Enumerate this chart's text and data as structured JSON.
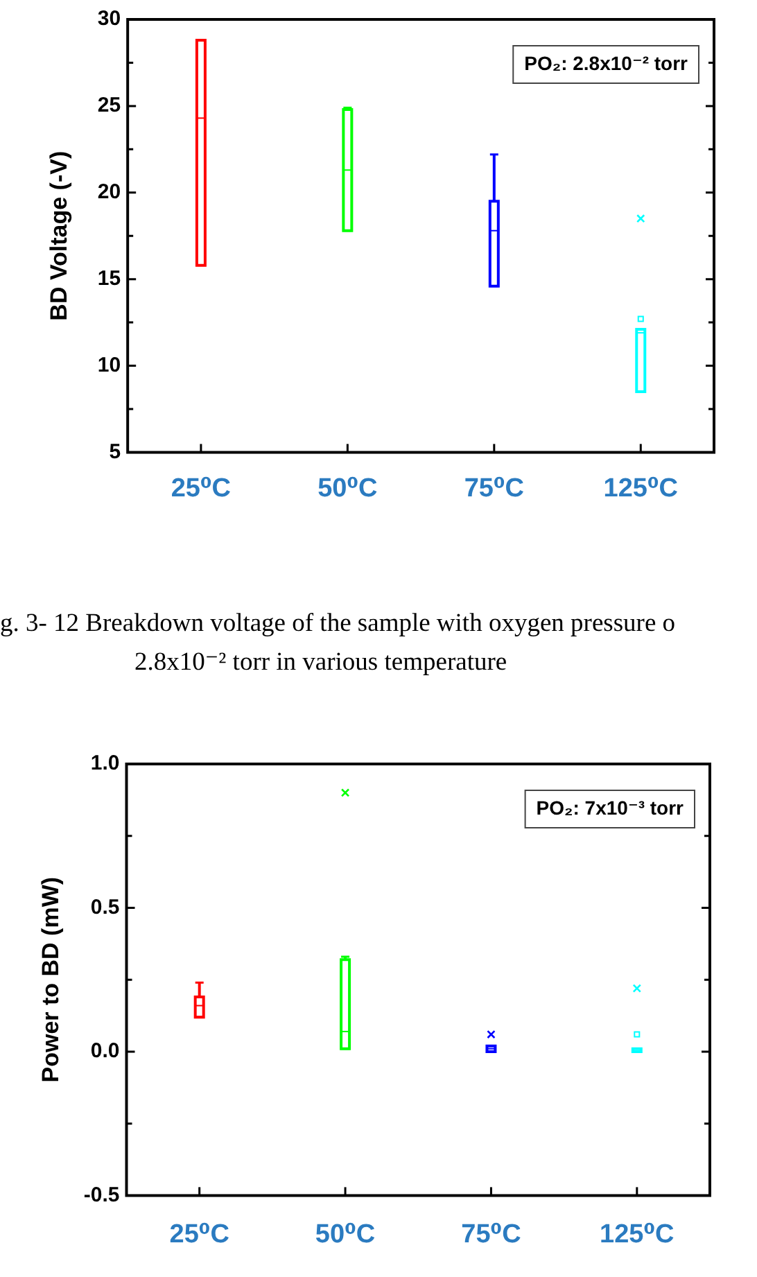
{
  "chart_data": [
    {
      "type": "box",
      "ylabel": "BD Voltage (-V)",
      "categories": [
        "25⁰C",
        "50⁰C",
        "75⁰C",
        "125⁰C"
      ],
      "colors": [
        "#ff0000",
        "#00ff00",
        "#0000ff",
        "#00ffff"
      ],
      "boxes": [
        {
          "low": 15.8,
          "q1": 15.8,
          "median": 24.3,
          "q3": 28.8,
          "high": 28.8
        },
        {
          "low": 17.8,
          "q1": 17.8,
          "median": 21.3,
          "q3": 24.8,
          "high": 24.9
        },
        {
          "low": 14.6,
          "q1": 14.6,
          "median": 17.8,
          "q3": 19.5,
          "high": 22.2
        },
        {
          "low": 8.5,
          "q1": 8.5,
          "median": 11.9,
          "q3": 12.1,
          "high": 12.1,
          "mean": 12.7,
          "outliers": [
            18.5
          ]
        }
      ],
      "ylim": [
        5,
        30
      ],
      "yticks": [
        5,
        {
          "value": 7.5,
          "label": null
        },
        10,
        {
          "value": 12.5,
          "label": null
        },
        15,
        {
          "value": 17.5,
          "label": null
        },
        20,
        {
          "value": 22.5,
          "label": null
        },
        25,
        {
          "value": 27.5,
          "label": null
        },
        30
      ],
      "annotations": [
        "PO₂: 2.8x10⁻² torr",
        "g. 3- 12 Breakdown voltage of the sample with oxygen pressure o",
        "2.8x10⁻² torr in various temperature"
      ]
    },
    {
      "type": "box",
      "ylabel": "Power to BD (mW)",
      "categories": [
        "25⁰C",
        "50⁰C",
        "75⁰C",
        "125⁰C"
      ],
      "colors": [
        "#ff0000",
        "#00ff00",
        "#0000ff",
        "#00ffff"
      ],
      "boxes": [
        {
          "low": 0.12,
          "q1": 0.12,
          "median": 0.16,
          "q3": 0.19,
          "high": 0.24
        },
        {
          "low": 0.01,
          "q1": 0.01,
          "median": 0.07,
          "q3": 0.32,
          "high": 0.33,
          "outliers": [
            0.9
          ]
        },
        {
          "low": 0,
          "q1": 0,
          "median": 0.01,
          "q3": 0.02,
          "high": 0.02,
          "outliers": [
            0.06
          ]
        },
        {
          "low": 0,
          "q1": 0,
          "median": 0,
          "q3": 0.01,
          "high": 0.01,
          "mean": 0.06,
          "outliers": [
            0.22
          ]
        }
      ],
      "ylim": [
        -0.5,
        1
      ],
      "yticks": [
        {
          "value": -0.5,
          "label": "-0.5"
        },
        {
          "value": -0.25,
          "label": null
        },
        {
          "value": 0,
          "label": "0.0"
        },
        {
          "value": 0.25,
          "label": null
        },
        {
          "value": 0.5,
          "label": "0.5"
        },
        {
          "value": 0.75,
          "label": null
        },
        {
          "value": 1,
          "label": "1.0"
        }
      ],
      "annotations": [
        "PO₂: 7x10⁻³ torr"
      ]
    }
  ]
}
